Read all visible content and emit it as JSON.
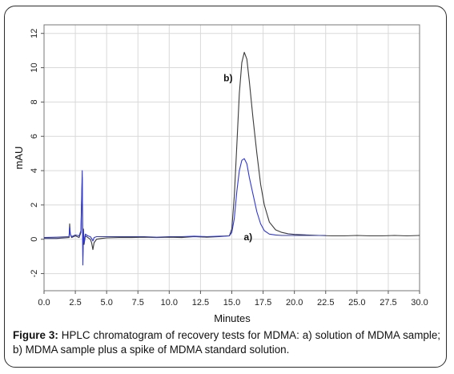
{
  "caption": {
    "label": "Figure 3:",
    "text": " HPLC chromatogram of recovery tests for MDMA: a) solution of MDMA sample; b) MDMA sample plus a spike of MDMA standard solution."
  },
  "chart_data": {
    "type": "line",
    "title": "",
    "xlabel": "Minutes",
    "ylabel": "mAU",
    "xlim": [
      0,
      30
    ],
    "ylim": [
      -3,
      12.5
    ],
    "grid": true,
    "xticks": [
      "0.0",
      "2.5",
      "5.0",
      "7.5",
      "10.0",
      "12.5",
      "15.0",
      "17.5",
      "20.0",
      "22.5",
      "25.0",
      "27.5",
      "30.0"
    ],
    "xtick_values": [
      0,
      2.5,
      5,
      7.5,
      10,
      12.5,
      15,
      17.5,
      20,
      22.5,
      25,
      27.5,
      30
    ],
    "yticks": [
      "-2",
      "0",
      "2",
      "4",
      "6",
      "8",
      "10",
      "12"
    ],
    "ytick_values": [
      -2,
      0,
      2,
      4,
      6,
      8,
      10,
      12
    ],
    "annotations": [
      {
        "text": "b)",
        "x": 14.7,
        "y": 9.2
      },
      {
        "text": "a)",
        "x": 16.3,
        "y": -0.05
      }
    ],
    "series": [
      {
        "color": "#3a3a3a",
        "x": [
          0,
          1,
          2,
          2.05,
          2.1,
          2.2,
          2.5,
          2.8,
          2.95,
          3.05,
          3.1,
          3.15,
          3.2,
          3.3,
          3.5,
          3.7,
          3.8,
          3.9,
          4.0,
          4.2,
          4.6,
          5,
          6,
          7,
          8,
          9,
          10,
          11,
          12,
          13,
          14,
          14.8,
          15.0,
          15.2,
          15.4,
          15.6,
          15.8,
          16.0,
          16.2,
          16.4,
          16.7,
          17.0,
          17.3,
          17.6,
          18.0,
          18.5,
          19.0,
          19.5,
          20,
          21,
          22,
          23,
          24,
          25,
          26,
          27,
          28,
          29,
          30
        ],
        "y": [
          0.05,
          0.05,
          0.1,
          0.9,
          0.3,
          0.1,
          0.2,
          0.1,
          0.4,
          3.6,
          -1.0,
          0.6,
          -0.3,
          0.2,
          0.1,
          0.0,
          -0.2,
          -0.6,
          -0.2,
          0.0,
          0.05,
          0.08,
          0.1,
          0.1,
          0.12,
          0.1,
          0.12,
          0.1,
          0.15,
          0.12,
          0.15,
          0.2,
          0.6,
          2.5,
          5.5,
          8.5,
          10.3,
          10.9,
          10.5,
          9.2,
          7.0,
          5.0,
          3.2,
          2.0,
          1.0,
          0.55,
          0.4,
          0.32,
          0.28,
          0.25,
          0.22,
          0.2,
          0.2,
          0.22,
          0.2,
          0.2,
          0.22,
          0.2,
          0.22
        ]
      },
      {
        "color": "#2f37d6",
        "x": [
          0,
          1,
          2,
          2.05,
          2.1,
          2.2,
          2.5,
          2.8,
          2.95,
          3.05,
          3.1,
          3.15,
          3.2,
          3.3,
          3.5,
          3.7,
          3.8,
          3.9,
          4.0,
          4.2,
          4.6,
          5,
          6,
          7,
          8,
          9,
          10,
          11,
          12,
          13,
          14,
          14.8,
          15.0,
          15.2,
          15.4,
          15.6,
          15.8,
          16.0,
          16.2,
          16.4,
          16.7,
          17.0,
          17.3,
          17.6,
          18.0,
          18.5,
          19.0,
          19.5,
          20,
          21,
          22,
          22.5
        ],
        "y": [
          0.1,
          0.12,
          0.15,
          0.7,
          0.3,
          0.15,
          0.25,
          0.2,
          0.5,
          4.0,
          -1.5,
          0.5,
          -0.2,
          0.3,
          0.2,
          0.15,
          0.05,
          -0.1,
          0.1,
          0.15,
          0.15,
          0.15,
          0.15,
          0.15,
          0.15,
          0.12,
          0.15,
          0.15,
          0.18,
          0.15,
          0.18,
          0.2,
          0.4,
          1.2,
          2.8,
          4.0,
          4.6,
          4.7,
          4.4,
          3.6,
          2.6,
          1.6,
          0.9,
          0.5,
          0.3,
          0.25,
          0.22,
          0.22,
          0.22,
          0.22,
          0.22,
          0.22
        ]
      }
    ]
  }
}
